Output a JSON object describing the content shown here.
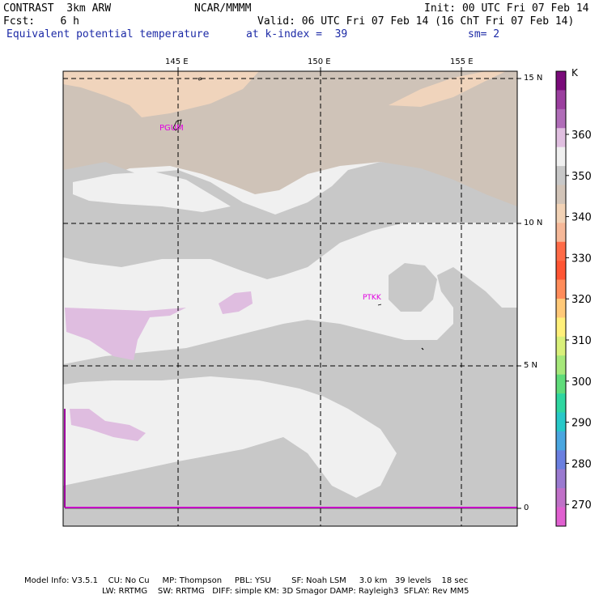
{
  "header": {
    "model": "CONTRAST  3km ARW",
    "org": "NCAR/MMMM",
    "init": "Init: 00 UTC Fri 07 Feb 14",
    "fcst": "Fcst:    6 h",
    "valid": "Valid: 06 UTC Fri 07 Feb 14 (16 ChT Fri 07 Feb 14)",
    "field": "Equivalent potential temperature",
    "level": "at k-index =  39",
    "smooth": "sm= 2"
  },
  "map": {
    "lon_labels": [
      "145 E",
      "150 E",
      "155 E"
    ],
    "lat_labels": [
      "15 N",
      "10 N",
      "5 N",
      "0"
    ],
    "stations": [
      "PGUM",
      "PTKK"
    ]
  },
  "legend": {
    "unit": "K",
    "labels": [
      "360",
      "350",
      "340",
      "330",
      "320",
      "310",
      "300",
      "290",
      "280",
      "270"
    ],
    "colors": [
      "#7a0b7a",
      "#9b3f9f",
      "#b06db8",
      "#e0bfe0",
      "#f0f0f0",
      "#c8c8c8",
      "#d2c4b8",
      "#f2d2b5",
      "#f6b898",
      "#ff6b47",
      "#ff5533",
      "#ff8c5a",
      "#ffc978",
      "#fff07a",
      "#d9f07a",
      "#a6e87a",
      "#5fdc7a",
      "#2fd6a0",
      "#28c8c8",
      "#4aa6e0",
      "#6a7fe0",
      "#9a7ad0",
      "#c070c8",
      "#e060d0"
    ]
  },
  "footer": {
    "line1": "Model Info: V3.5.1    CU: No Cu     MP: Thompson     PBL: YSU        SF: Noah LSM     3.0 km   39 levels    18 sec",
    "line2": "LW: RRTMG    SW: RRTMG   DIFF: simple KM: 3D Smagor DAMP: Rayleigh3  SFLAY: Rev MM5"
  }
}
